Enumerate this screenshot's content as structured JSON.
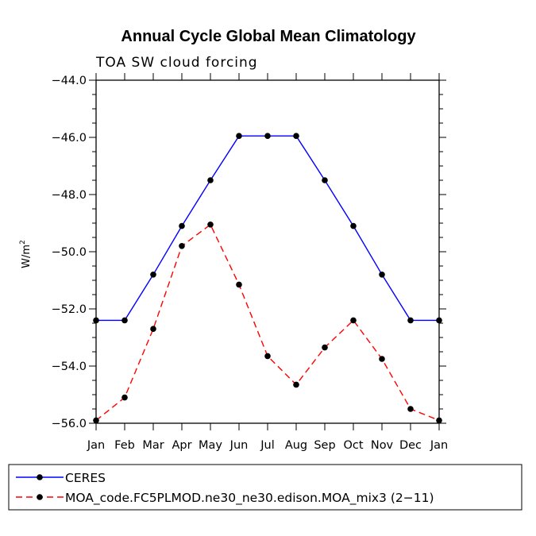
{
  "chart_data": {
    "type": "line",
    "title": "Annual Cycle Global Mean Climatology",
    "subtitle": "TOA SW cloud forcing",
    "ylabel": "W/m",
    "ylabel_superscript": "2",
    "ylim": [
      -56.0,
      -44.0
    ],
    "yticks": [
      -56.0,
      -54.0,
      -52.0,
      -50.0,
      -48.0,
      -46.0,
      -44.0
    ],
    "ytick_labels": [
      "−56.0",
      "−54.0",
      "−52.0",
      "−50.0",
      "−48.0",
      "−46.0",
      "−44.0"
    ],
    "categories": [
      "Jan",
      "Feb",
      "Mar",
      "Apr",
      "May",
      "Jun",
      "Jul",
      "Aug",
      "Sep",
      "Oct",
      "Nov",
      "Dec",
      "Jan"
    ],
    "series": [
      {
        "name": "CERES",
        "color": "#0000ff",
        "dash": "solid",
        "values": [
          -52.4,
          -52.4,
          -50.8,
          -49.1,
          -47.5,
          -45.95,
          -45.95,
          -45.95,
          -47.5,
          -49.1,
          -50.8,
          -52.4,
          -52.4
        ]
      },
      {
        "name": "MOA_code.FC5PLMOD.ne30_ne30.edison.MOA_mix3 (2−11)",
        "color": "#ff0000",
        "dash": "dashed",
        "values": [
          -55.9,
          -55.1,
          -52.7,
          -49.8,
          -49.05,
          -51.15,
          -53.65,
          -54.65,
          -53.35,
          -52.4,
          -53.75,
          -55.5,
          -55.9
        ]
      }
    ],
    "legend_position": "bottom-left"
  }
}
